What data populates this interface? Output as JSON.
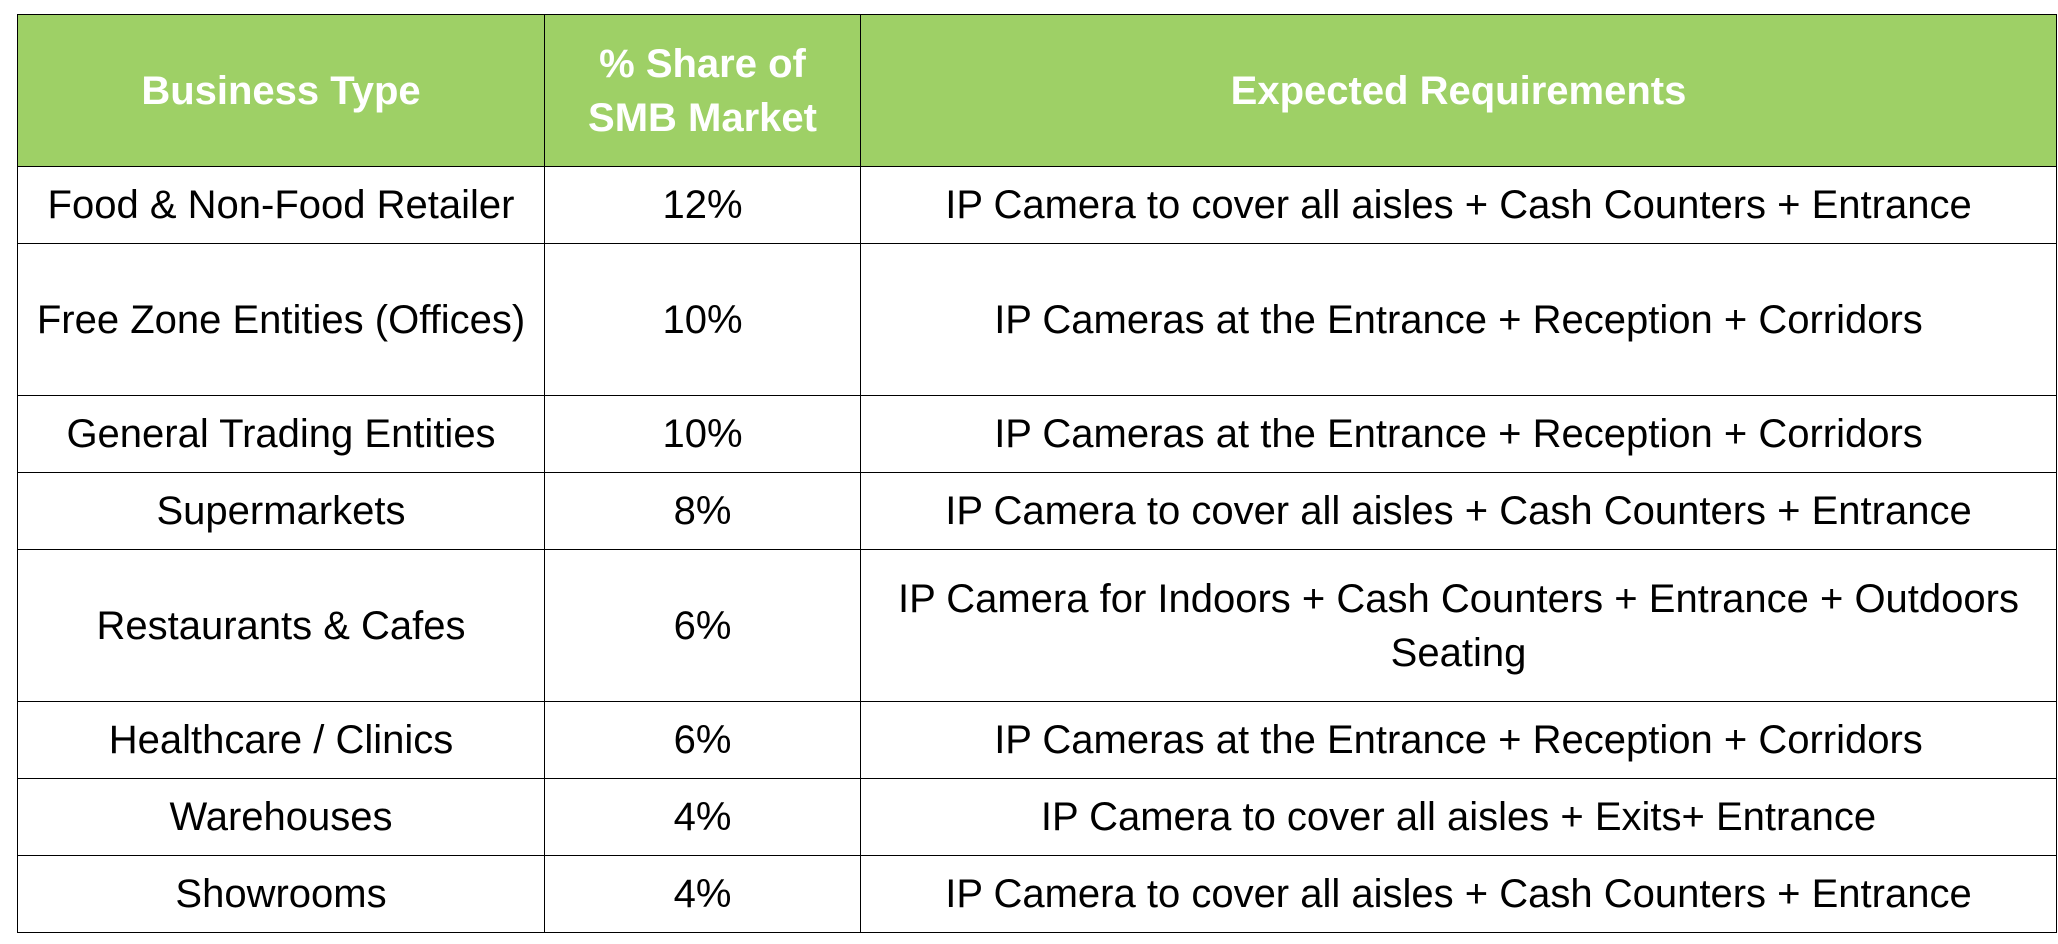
{
  "colors": {
    "header_bg": "#9ed066",
    "header_text": "#ffffff",
    "border": "#000000",
    "body_text": "#000000"
  },
  "table": {
    "headers": {
      "business_type": "Business Type",
      "share": "% Share of SMB Market",
      "requirements": "Expected Requirements"
    },
    "rows": [
      {
        "business_type": "Food & Non-Food Retailer",
        "share": "12%",
        "requirements": "IP Camera to cover all  aisles + Cash Counters + Entrance"
      },
      {
        "business_type": "Free Zone Entities (Offices)",
        "share": "10%",
        "requirements": "IP Cameras at the Entrance + Reception + Corridors"
      },
      {
        "business_type": "General Trading Entities",
        "share": "10%",
        "requirements": "IP Cameras at the Entrance + Reception + Corridors"
      },
      {
        "business_type": "Supermarkets",
        "share": "8%",
        "requirements": "IP Camera to cover all  aisles + Cash Counters + Entrance"
      },
      {
        "business_type": "Restaurants & Cafes",
        "share": "6%",
        "requirements": "IP Camera for Indoors + Cash Counters + Entrance + Outdoors Seating"
      },
      {
        "business_type": "Healthcare / Clinics",
        "share": "6%",
        "requirements": "IP Cameras at the Entrance + Reception + Corridors"
      },
      {
        "business_type": "Warehouses",
        "share": "4%",
        "requirements": "IP Camera to cover all  aisles + Exits+ Entrance"
      },
      {
        "business_type": "Showrooms",
        "share": "4%",
        "requirements": "IP Camera to cover all  aisles + Cash Counters + Entrance"
      }
    ]
  }
}
